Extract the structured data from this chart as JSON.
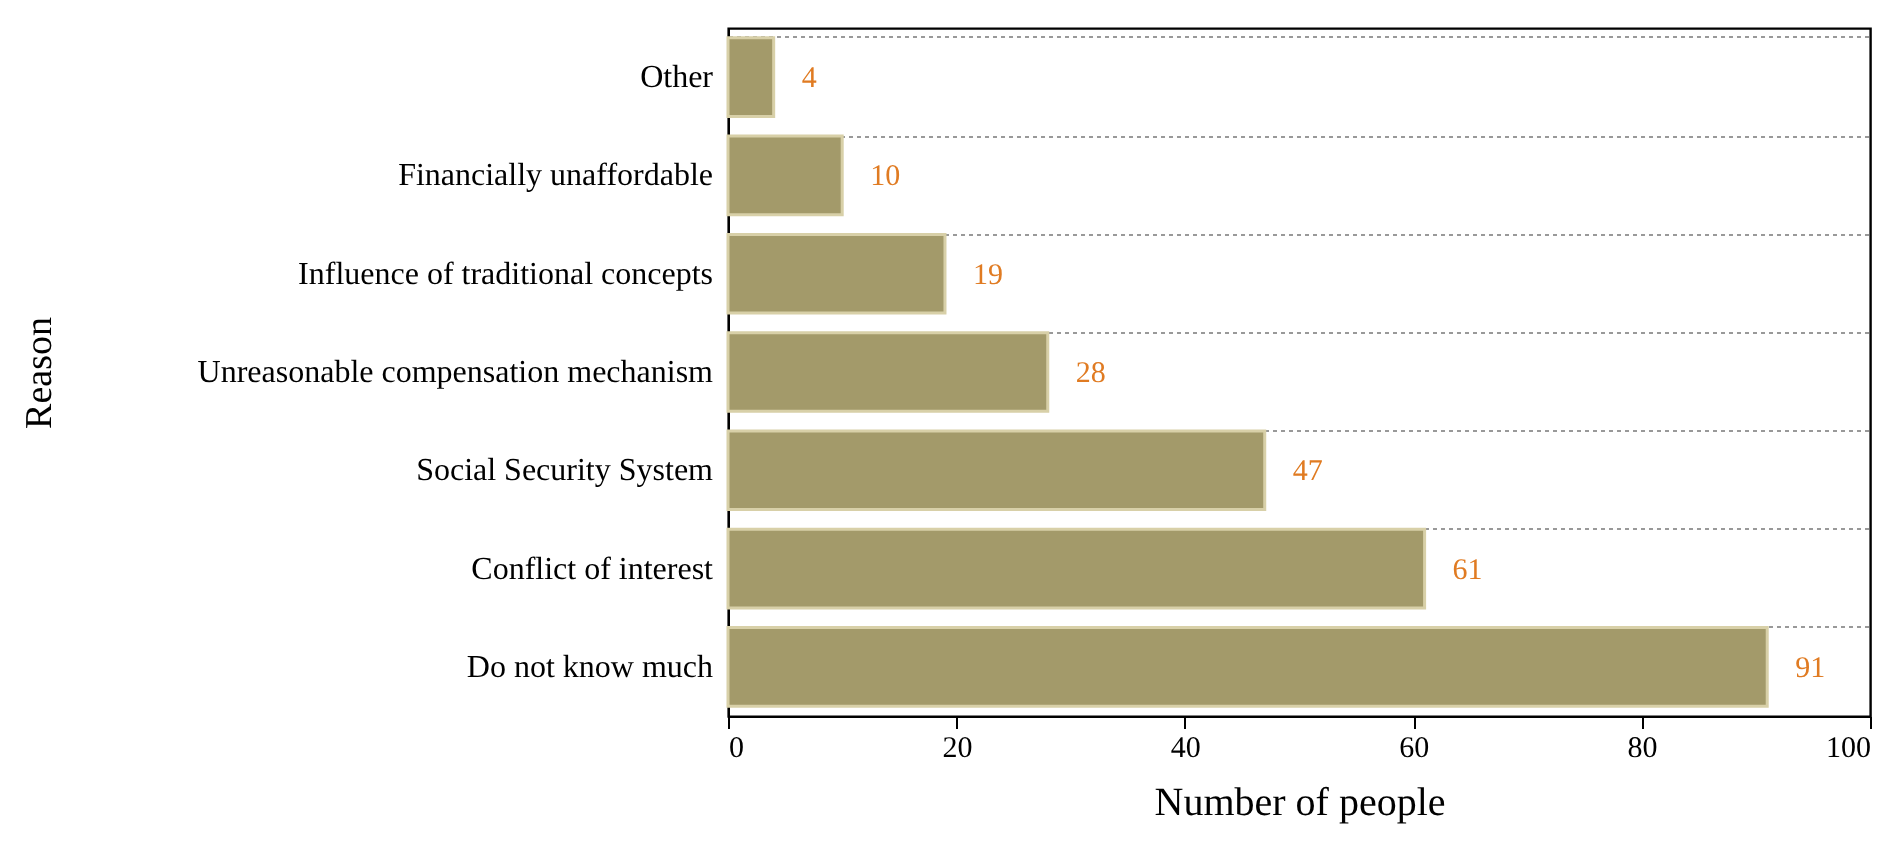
{
  "chart_data": {
    "type": "bar",
    "orientation": "horizontal",
    "xlabel": "Number of people",
    "ylabel": "Reason",
    "categories": [
      "Other",
      "Financially unaffordable",
      "Influence of traditional concepts",
      "Unreasonable compensation mechanism",
      "Social Security System",
      "Conflict of interest",
      "Do not know much"
    ],
    "values": [
      4,
      10,
      19,
      28,
      47,
      61,
      91
    ],
    "color": "#a39a6a",
    "xlim": [
      0,
      100
    ],
    "xticks": [
      0,
      20,
      40,
      60,
      80,
      100
    ],
    "grid": "y",
    "data_labels": true
  }
}
